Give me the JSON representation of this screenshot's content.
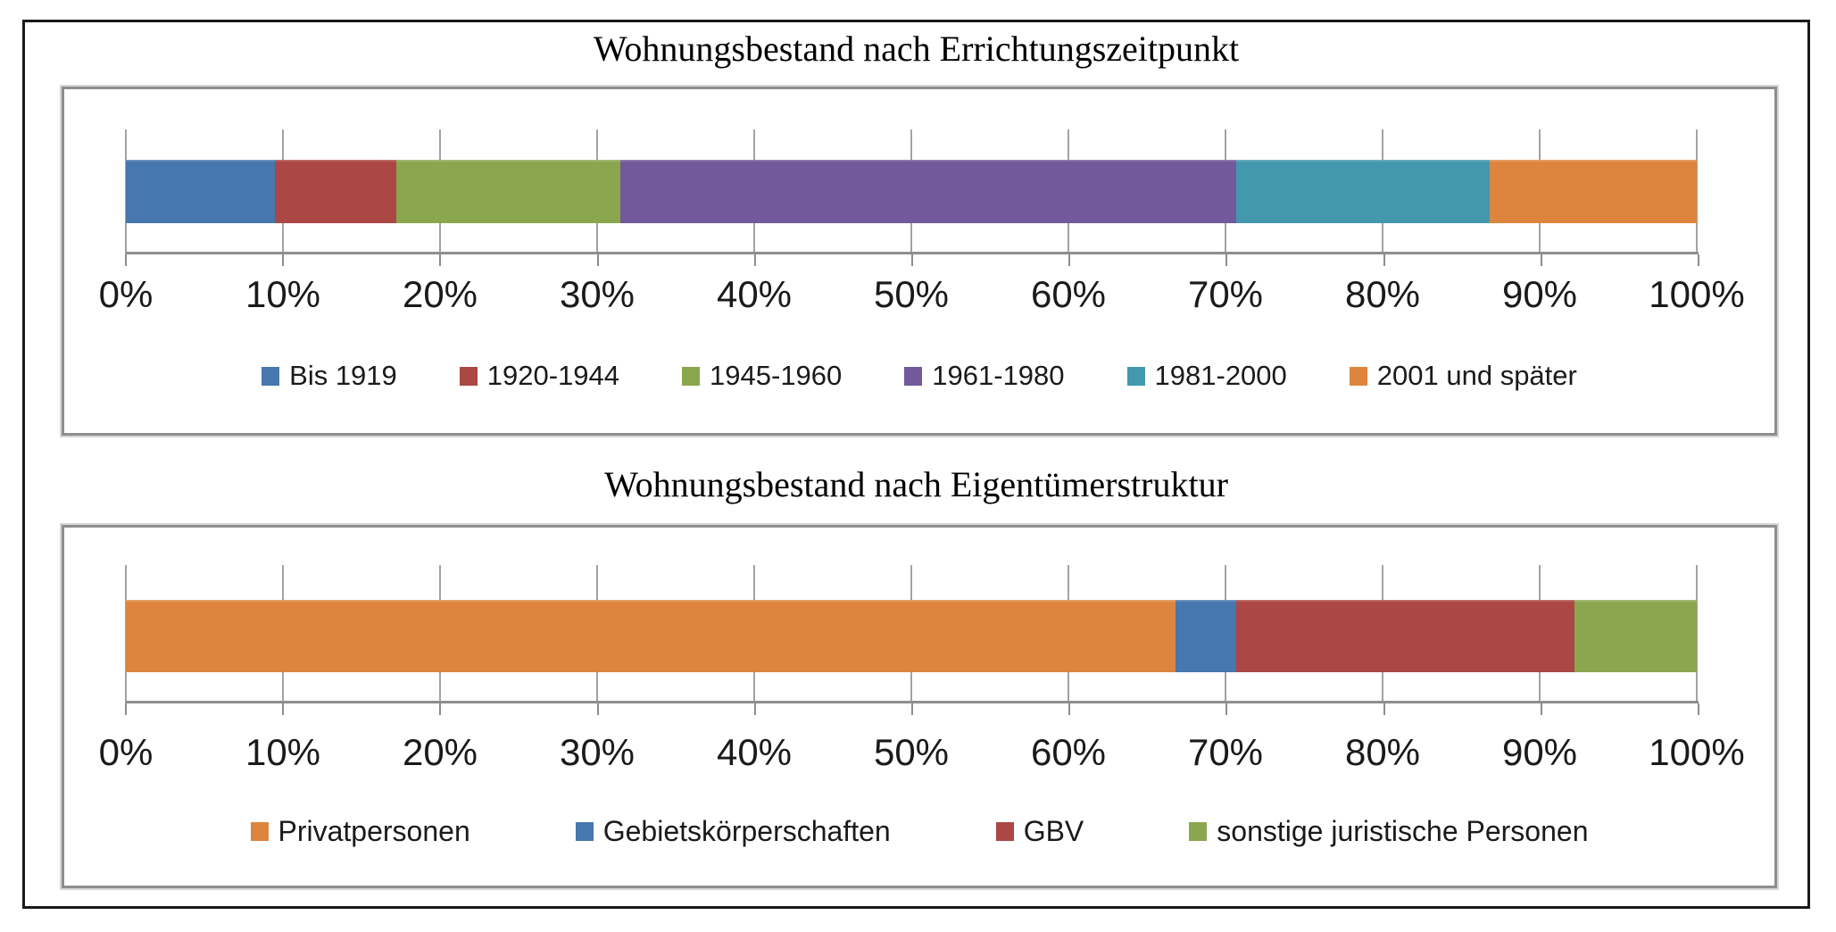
{
  "figure": {
    "background": "#ffffff",
    "outer_border_color": "#1a1a1a",
    "chart_frame_color": "#8e8e8e",
    "gridline_color": "#a3a3a3",
    "text_color": "#1a1a1a"
  },
  "chart_data": [
    {
      "type": "bar",
      "stacked": true,
      "orientation": "horizontal",
      "title": "Wohnungsbestand nach Errichtungszeitpunkt",
      "xlim": [
        0,
        100
      ],
      "x_tick_labels": [
        "0%",
        "10%",
        "20%",
        "30%",
        "40%",
        "50%",
        "60%",
        "70%",
        "80%",
        "90%",
        "100%"
      ],
      "grid": true,
      "legend_position": "bottom",
      "series": [
        {
          "name": "Bis 1919",
          "value": 9.5,
          "color": "#4677AE"
        },
        {
          "name": "1920-1944",
          "value": 7.7,
          "color": "#AB4744"
        },
        {
          "name": "1945-1960",
          "value": 14.3,
          "color": "#8AA64F"
        },
        {
          "name": "1961-1980",
          "value": 39.2,
          "color": "#71599B"
        },
        {
          "name": "1981-2000",
          "value": 16.1,
          "color": "#4398AE"
        },
        {
          "name": "2001 und später",
          "value": 13.2,
          "color": "#DD853E"
        }
      ]
    },
    {
      "type": "bar",
      "stacked": true,
      "orientation": "horizontal",
      "title": "Wohnungsbestand nach Eigentümerstruktur",
      "xlim": [
        0,
        100
      ],
      "x_tick_labels": [
        "0%",
        "10%",
        "20%",
        "30%",
        "40%",
        "50%",
        "60%",
        "70%",
        "80%",
        "90%",
        "100%"
      ],
      "grid": true,
      "legend_position": "bottom",
      "series": [
        {
          "name": "Privatpersonen",
          "value": 66.8,
          "color": "#DD853E"
        },
        {
          "name": "Gebietskörperschaften",
          "value": 3.9,
          "color": "#4677AE"
        },
        {
          "name": "GBV",
          "value": 21.5,
          "color": "#AB4744"
        },
        {
          "name": "sonstige juristische Personen",
          "value": 7.8,
          "color": "#8AA64F"
        }
      ]
    }
  ]
}
